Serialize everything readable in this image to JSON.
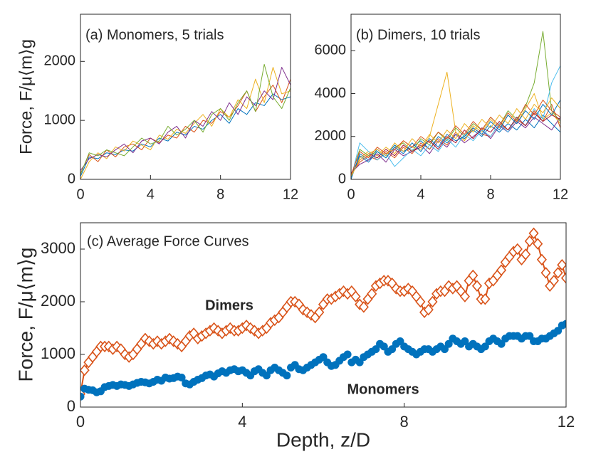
{
  "chart_data": [
    {
      "type": "line",
      "ylabel": "Force, F/μ⟨m⟩g",
      "annotations": [
        "(a) Monomers, 5 trials"
      ],
      "x": [
        0,
        0.5,
        1,
        1.5,
        2,
        2.5,
        3,
        3.5,
        4,
        4.5,
        5,
        5.5,
        6,
        6.5,
        7,
        7.5,
        8,
        8.5,
        9,
        9.5,
        10,
        10.5,
        11,
        11.5,
        12
      ],
      "xlim": [
        0,
        12
      ],
      "xticks": [
        0,
        4,
        8,
        12
      ],
      "ylim": [
        0,
        2800
      ],
      "yticks": [
        0,
        1000,
        2000
      ],
      "series": [
        {
          "color": "#0072BD",
          "values": [
            50,
            380,
            350,
            450,
            420,
            500,
            480,
            600,
            550,
            700,
            650,
            800,
            750,
            900,
            850,
            1000,
            1100,
            950,
            1200,
            1100,
            1300,
            1250,
            1450,
            1350,
            1400
          ]
        },
        {
          "color": "#D95319",
          "values": [
            100,
            420,
            300,
            500,
            380,
            550,
            600,
            500,
            700,
            620,
            750,
            700,
            900,
            800,
            1000,
            950,
            1150,
            1050,
            1250,
            1500,
            1150,
            1400,
            1600,
            1300,
            1700
          ]
        },
        {
          "color": "#EDB120",
          "values": [
            0,
            300,
            450,
            350,
            550,
            480,
            650,
            580,
            500,
            750,
            680,
            850,
            780,
            950,
            1100,
            900,
            1200,
            1050,
            1350,
            1200,
            1700,
            1300,
            1900,
            1450,
            1500
          ]
        },
        {
          "color": "#7E2F8E",
          "values": [
            150,
            350,
            420,
            380,
            500,
            600,
            450,
            650,
            700,
            600,
            800,
            900,
            700,
            1000,
            900,
            1150,
            1000,
            1300,
            1100,
            1400,
            1250,
            1500,
            1350,
            1900,
            1600
          ]
        },
        {
          "color": "#77AC30",
          "values": [
            80,
            450,
            400,
            500,
            450,
            400,
            550,
            700,
            600,
            650,
            900,
            750,
            850,
            1000,
            800,
            1100,
            1200,
            1000,
            1300,
            1500,
            1150,
            1950,
            1400,
            1200,
            1550
          ]
        }
      ]
    },
    {
      "type": "line",
      "annotations": [
        "(b) Dimers, 10 trials"
      ],
      "x": [
        0,
        0.5,
        1,
        1.5,
        2,
        2.5,
        3,
        3.5,
        4,
        4.5,
        5,
        5.5,
        6,
        6.5,
        7,
        7.5,
        8,
        8.5,
        9,
        9.5,
        10,
        10.5,
        11,
        11.5,
        12
      ],
      "xlim": [
        0,
        12
      ],
      "xticks": [
        0,
        4,
        8,
        12
      ],
      "ylim": [
        0,
        7700
      ],
      "yticks": [
        0,
        2000,
        4000,
        6000
      ],
      "series": [
        {
          "color": "#0072BD",
          "values": [
            0,
            1200,
            900,
            1400,
            1100,
            1600,
            1300,
            1500,
            1800,
            1400,
            2000,
            1700,
            2100,
            1900,
            2300,
            2000,
            2500,
            2200,
            2600,
            2300,
            2800,
            2400,
            3000,
            2600,
            2200
          ]
        },
        {
          "color": "#D95319",
          "values": [
            200,
            800,
            1100,
            900,
            1300,
            1000,
            1500,
            1200,
            1700,
            1400,
            1900,
            1600,
            2200,
            1800,
            2400,
            2100,
            2000,
            2600,
            2300,
            2800,
            2500,
            3200,
            2700,
            3500,
            2400
          ]
        },
        {
          "color": "#EDB120",
          "values": [
            100,
            1000,
            1300,
            1100,
            1500,
            1200,
            1800,
            1500,
            1400,
            2000,
            3500,
            5000,
            2200,
            1800,
            2500,
            2200,
            2800,
            2400,
            3000,
            2600,
            3300,
            4000,
            2800,
            3100,
            2600
          ]
        },
        {
          "color": "#7E2F8E",
          "values": [
            300,
            700,
            900,
            1200,
            800,
            1400,
            1100,
            1300,
            1600,
            1200,
            1800,
            1500,
            2100,
            1700,
            2000,
            2300,
            1900,
            2500,
            2200,
            2700,
            2400,
            2900,
            2600,
            2300,
            2900
          ]
        },
        {
          "color": "#77AC30",
          "values": [
            150,
            1400,
            1100,
            1300,
            1000,
            1500,
            1700,
            1300,
            1900,
            1600,
            2200,
            1800,
            2400,
            2000,
            2600,
            2300,
            2900,
            2500,
            3200,
            2800,
            3400,
            4500,
            6900,
            3200,
            2700
          ]
        },
        {
          "color": "#4DBEEE",
          "values": [
            50,
            1700,
            1300,
            900,
            1200,
            600,
            1000,
            1400,
            1100,
            1600,
            1300,
            1900,
            1500,
            2100,
            1800,
            2300,
            2000,
            2600,
            2200,
            2900,
            2500,
            3300,
            2800,
            4500,
            5300
          ]
        },
        {
          "color": "#A2142F",
          "values": [
            250,
            900,
            1200,
            1000,
            1400,
            1100,
            1600,
            1300,
            1500,
            1800,
            1400,
            2000,
            1700,
            2300,
            1900,
            2400,
            2200,
            2700,
            2300,
            2900,
            2500,
            3100,
            2700,
            3000,
            2800
          ]
        },
        {
          "color": "#0072BD",
          "values": [
            100,
            1100,
            800,
            1300,
            1000,
            1500,
            1200,
            1700,
            1300,
            1900,
            1500,
            2100,
            1800,
            2000,
            2400,
            2100,
            2700,
            2300,
            3000,
            2600,
            3200,
            2800,
            3500,
            3000,
            3700
          ]
        },
        {
          "color": "#D95319",
          "values": [
            200,
            1300,
            1000,
            1500,
            1200,
            1400,
            1800,
            1500,
            2000,
            1700,
            2200,
            1900,
            2500,
            2100,
            2700,
            2300,
            2900,
            2500,
            3100,
            2700,
            3500,
            3000,
            3700,
            3200,
            2900
          ]
        },
        {
          "color": "#EDB120",
          "values": [
            150,
            900,
            1200,
            1400,
            1100,
            1700,
            1300,
            1900,
            1500,
            2100,
            1700,
            2300,
            1900,
            2600,
            2200,
            2800,
            2400,
            3000,
            2600,
            3300,
            2800,
            3500,
            3100,
            3800,
            3300
          ]
        }
      ]
    },
    {
      "type": "line",
      "ylabel": "Force, F/μ⟨m⟩g",
      "xlabel": "Depth, z/D",
      "annotations": [
        "(c) Average Force Curves"
      ],
      "x": [
        0,
        0.1,
        0.2,
        0.3,
        0.4,
        0.5,
        0.6,
        0.7,
        0.8,
        0.9,
        1,
        1.1,
        1.2,
        1.3,
        1.4,
        1.5,
        1.6,
        1.7,
        1.8,
        1.9,
        2,
        2.1,
        2.2,
        2.3,
        2.4,
        2.5,
        2.6,
        2.7,
        2.8,
        2.9,
        3,
        3.1,
        3.2,
        3.3,
        3.4,
        3.5,
        3.6,
        3.7,
        3.8,
        3.9,
        4,
        4.1,
        4.2,
        4.3,
        4.4,
        4.5,
        4.6,
        4.7,
        4.8,
        4.9,
        5,
        5.1,
        5.2,
        5.3,
        5.4,
        5.5,
        5.6,
        5.7,
        5.8,
        5.9,
        6,
        6.1,
        6.2,
        6.3,
        6.4,
        6.5,
        6.6,
        6.7,
        6.8,
        6.9,
        7,
        7.1,
        7.2,
        7.3,
        7.4,
        7.5,
        7.6,
        7.7,
        7.8,
        7.9,
        8,
        8.1,
        8.2,
        8.3,
        8.4,
        8.5,
        8.6,
        8.7,
        8.8,
        8.9,
        9,
        9.1,
        9.2,
        9.3,
        9.4,
        9.5,
        9.6,
        9.7,
        9.8,
        9.9,
        10,
        10.1,
        10.2,
        10.3,
        10.4,
        10.5,
        10.6,
        10.7,
        10.8,
        10.9,
        11,
        11.1,
        11.2,
        11.3,
        11.4,
        11.5,
        11.6,
        11.7,
        11.8,
        11.9,
        12
      ],
      "xlim": [
        0,
        12
      ],
      "xticks": [
        0,
        4,
        8,
        12
      ],
      "ylim": [
        0,
        3500
      ],
      "yticks": [
        0,
        1000,
        2000,
        3000
      ],
      "series": [
        {
          "name": "Dimers",
          "color": "#D95319",
          "marker": "diamond",
          "line": true,
          "values": [
            250,
            700,
            850,
            950,
            1050,
            1150,
            1150,
            1150,
            1100,
            1150,
            1100,
            1000,
            950,
            1000,
            1100,
            1200,
            1300,
            1250,
            1200,
            1250,
            1200,
            1250,
            1300,
            1250,
            1200,
            1150,
            1250,
            1350,
            1400,
            1300,
            1350,
            1400,
            1450,
            1500,
            1450,
            1400,
            1450,
            1500,
            1450,
            1450,
            1500,
            1550,
            1500,
            1450,
            1400,
            1450,
            1500,
            1600,
            1650,
            1700,
            1800,
            1900,
            2000,
            2000,
            1950,
            1850,
            1800,
            1750,
            1700,
            1800,
            1950,
            2050,
            2050,
            2100,
            2150,
            2200,
            2150,
            2200,
            2100,
            1950,
            1900,
            2050,
            2150,
            2300,
            2350,
            2400,
            2400,
            2350,
            2250,
            2200,
            2200,
            2250,
            2200,
            2100,
            2000,
            1800,
            1850,
            2000,
            2150,
            2200,
            2200,
            2300,
            2250,
            2300,
            2200,
            2100,
            2400,
            2500,
            2300,
            2050,
            2050,
            2350,
            2400,
            2500,
            2600,
            2750,
            2850,
            2950,
            3000,
            2800,
            2900,
            3150,
            3300,
            3100,
            2800,
            2550,
            2300,
            2400,
            2550,
            2700,
            2450
          ]
        },
        {
          "name": "Monomers",
          "color": "#0072BD",
          "marker": "circle",
          "line": false,
          "values": [
            200,
            350,
            330,
            320,
            280,
            300,
            380,
            400,
            420,
            400,
            430,
            420,
            400,
            430,
            460,
            480,
            470,
            450,
            480,
            520,
            500,
            560,
            540,
            550,
            580,
            560,
            450,
            430,
            480,
            520,
            550,
            600,
            620,
            580,
            640,
            680,
            650,
            700,
            720,
            680,
            700,
            650,
            600,
            680,
            720,
            650,
            600,
            700,
            750,
            700,
            650,
            600,
            750,
            800,
            720,
            700,
            750,
            800,
            850,
            900,
            950,
            850,
            780,
            800,
            880,
            950,
            1000,
            850,
            900,
            850,
            950,
            1000,
            1050,
            1100,
            1200,
            1150,
            1050,
            1100,
            1200,
            1250,
            1150,
            1100,
            1050,
            1000,
            1050,
            1100,
            1100,
            1050,
            1100,
            1150,
            1100,
            1200,
            1300,
            1250,
            1200,
            1250,
            1150,
            1200,
            1150,
            1100,
            1150,
            1250,
            1300,
            1250,
            1200,
            1300,
            1350,
            1350,
            1350,
            1300,
            1350,
            1350,
            1250,
            1250,
            1300,
            1300,
            1350,
            1400,
            1450,
            1550,
            1580
          ]
        }
      ]
    }
  ]
}
